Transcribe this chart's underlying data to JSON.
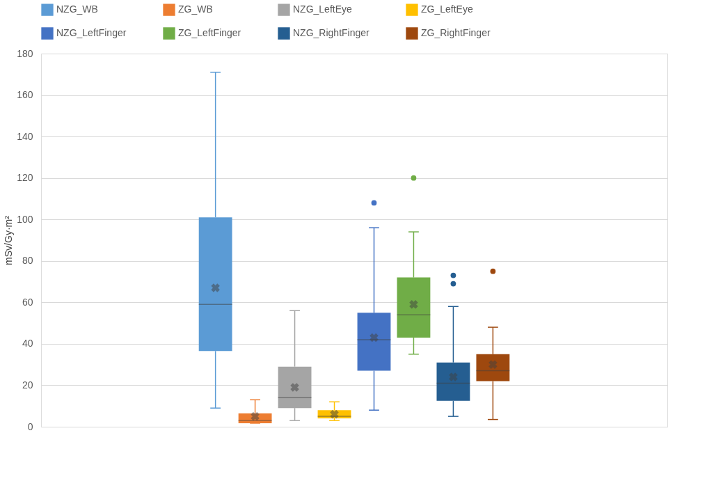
{
  "chart_data": {
    "type": "box",
    "categories": [
      null
    ],
    "ylabel": "mSv/Gy·m²",
    "ylim": [
      0,
      180
    ],
    "yticks": [
      0,
      20,
      40,
      60,
      80,
      100,
      120,
      140,
      160,
      180
    ],
    "grid": "y",
    "legend": "top",
    "series": [
      {
        "name": "NZG_WB",
        "color": "#5b9bd5",
        "boxes": [
          {
            "low": 9,
            "q1": 36.5,
            "median": 59,
            "q3": 101,
            "high": 171,
            "mean": 67
          }
        ]
      },
      {
        "name": "ZG_WB",
        "color": "#ed7d31",
        "boxes": [
          {
            "low": 1.7,
            "q1": 1.7,
            "median": 3,
            "q3": 6.5,
            "high": 13,
            "mean": 5
          }
        ]
      },
      {
        "name": "NZG_LeftEye",
        "color": "#a5a5a5",
        "boxes": [
          {
            "low": 3,
            "q1": 9,
            "median": 14,
            "q3": 29,
            "high": 56,
            "mean": 19
          }
        ]
      },
      {
        "name": "ZG_LeftEye",
        "color": "#ffc000",
        "boxes": [
          {
            "low": 3,
            "q1": 4,
            "median": 5,
            "q3": 8,
            "high": 12,
            "mean": 6
          }
        ]
      },
      {
        "name": "NZG_LeftFinger",
        "color": "#4472c4",
        "boxes": [
          {
            "low": 8,
            "q1": 27,
            "median": 42,
            "q3": 55,
            "high": 96,
            "mean": 43,
            "outliers": [
              108
            ]
          }
        ]
      },
      {
        "name": "ZG_LeftFinger",
        "color": "#70ad47",
        "boxes": [
          {
            "low": 35,
            "q1": 43,
            "median": 54,
            "q3": 72,
            "high": 94,
            "mean": 59,
            "outliers": [
              120
            ]
          }
        ]
      },
      {
        "name": "NZG_RightFinger",
        "color": "#255e91",
        "boxes": [
          {
            "low": 5,
            "q1": 12.5,
            "median": 21,
            "q3": 31,
            "high": 58,
            "mean": 24,
            "outliers": [
              69,
              73
            ]
          }
        ]
      },
      {
        "name": "ZG_RightFinger",
        "color": "#9e480e",
        "boxes": [
          {
            "low": 3.5,
            "q1": 22,
            "median": 27,
            "q3": 35,
            "high": 48,
            "mean": 30,
            "outliers": [
              75
            ]
          }
        ]
      }
    ]
  }
}
